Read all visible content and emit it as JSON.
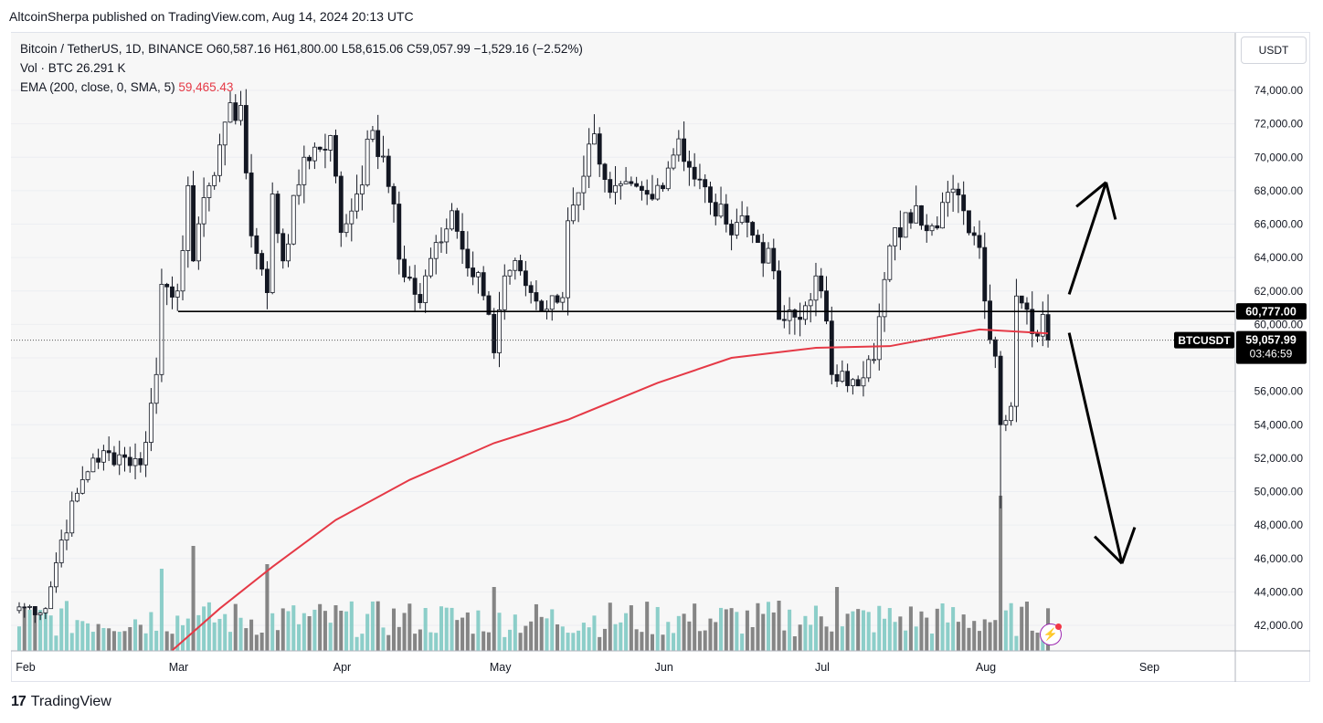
{
  "header": {
    "attribution": "AltcoinSherpa published on TradingView.com, Aug 14, 2024 20:13 UTC"
  },
  "legend": {
    "line1": "Bitcoin / TetherUS, 1D, BINANCE  O60,587.16  H61,800.00  L58,615.06  C59,057.99  −1,529.16 (−2.52%)",
    "line2": "Vol · BTC  26.291 K",
    "line3_prefix": "EMA (200, close, 0, SMA, 5)",
    "line3_value": "59,465.43"
  },
  "price_axis": {
    "unit_button": "USDT"
  },
  "footer": {
    "brand": "TradingView",
    "logo_glyph": "17"
  },
  "colors": {
    "up": "#ffffff",
    "down": "#131722",
    "ema": "#e53946",
    "vol_up": "#7fc9c3",
    "vol_down": "#787878",
    "line": "#000000"
  },
  "icons": {
    "flash": "lightning-bolt-icon"
  },
  "chart_data": {
    "type": "candlestick",
    "symbol": "BTCUSDT",
    "interval": "1D",
    "ylim": [
      40500,
      76500
    ],
    "y_ticks": [
      42000,
      44000,
      46000,
      48000,
      50000,
      52000,
      54000,
      56000,
      58000,
      60000,
      62000,
      64000,
      66000,
      68000,
      70000,
      72000,
      74000
    ],
    "x_ticks": [
      {
        "date": "2024-02-01",
        "label": "Feb"
      },
      {
        "date": "2024-03-01",
        "label": "Mar"
      },
      {
        "date": "2024-04-01",
        "label": "Apr"
      },
      {
        "date": "2024-05-01",
        "label": "May"
      },
      {
        "date": "2024-06-01",
        "label": "Jun"
      },
      {
        "date": "2024-07-01",
        "label": "Jul"
      },
      {
        "date": "2024-08-01",
        "label": "Aug"
      },
      {
        "date": "2024-09-01",
        "label": "Sep"
      }
    ],
    "x_range": [
      "2024-02-01",
      "2024-09-25"
    ],
    "close_anchors": [
      [
        "2024-02-01",
        43100
      ],
      [
        "2024-02-06",
        43000
      ],
      [
        "2024-02-09",
        47100
      ],
      [
        "2024-02-12",
        49900
      ],
      [
        "2024-02-15",
        52000
      ],
      [
        "2024-02-20",
        52200
      ],
      [
        "2024-02-24",
        51600
      ],
      [
        "2024-02-27",
        57000
      ],
      [
        "2024-02-28",
        62400
      ],
      [
        "2024-03-02",
        62000
      ],
      [
        "2024-03-04",
        68300
      ],
      [
        "2024-03-05",
        63800
      ],
      [
        "2024-03-08",
        68300
      ],
      [
        "2024-03-11",
        72100
      ],
      [
        "2024-03-14",
        73100
      ],
      [
        "2024-03-16",
        65300
      ],
      [
        "2024-03-19",
        61900
      ],
      [
        "2024-03-20",
        67800
      ],
      [
        "2024-03-22",
        63800
      ],
      [
        "2024-03-26",
        70000
      ],
      [
        "2024-03-31",
        71300
      ],
      [
        "2024-04-02",
        65500
      ],
      [
        "2024-04-05",
        67800
      ],
      [
        "2024-04-08",
        71600
      ],
      [
        "2024-04-12",
        67200
      ],
      [
        "2024-04-13",
        63900
      ],
      [
        "2024-04-17",
        61300
      ],
      [
        "2024-04-20",
        64900
      ],
      [
        "2024-04-23",
        66800
      ],
      [
        "2024-04-25",
        64500
      ],
      [
        "2024-04-28",
        63100
      ],
      [
        "2024-04-30",
        60600
      ],
      [
        "2024-05-01",
        58300
      ],
      [
        "2024-05-03",
        62900
      ],
      [
        "2024-05-06",
        63200
      ],
      [
        "2024-05-10",
        60800
      ],
      [
        "2024-05-14",
        61600
      ],
      [
        "2024-05-15",
        66200
      ],
      [
        "2024-05-20",
        71400
      ],
      [
        "2024-05-23",
        67900
      ],
      [
        "2024-05-31",
        67500
      ],
      [
        "2024-06-05",
        71100
      ],
      [
        "2024-06-07",
        69400
      ],
      [
        "2024-06-11",
        67300
      ],
      [
        "2024-06-14",
        66000
      ],
      [
        "2024-06-17",
        66500
      ],
      [
        "2024-06-20",
        64900
      ],
      [
        "2024-06-23",
        63200
      ],
      [
        "2024-06-24",
        60300
      ],
      [
        "2024-06-28",
        60300
      ],
      [
        "2024-07-01",
        62900
      ],
      [
        "2024-07-03",
        60200
      ],
      [
        "2024-07-04",
        57000
      ],
      [
        "2024-07-05",
        56600
      ],
      [
        "2024-07-08",
        56700
      ],
      [
        "2024-07-12",
        57900
      ],
      [
        "2024-07-15",
        64700
      ],
      [
        "2024-07-20",
        67100
      ],
      [
        "2024-07-23",
        65900
      ],
      [
        "2024-07-26",
        67900
      ],
      [
        "2024-07-29",
        66800
      ],
      [
        "2024-08-01",
        64600
      ],
      [
        "2024-08-02",
        61400
      ],
      [
        "2024-08-04",
        58100
      ],
      [
        "2024-08-05",
        54000
      ],
      [
        "2024-08-07",
        55100
      ],
      [
        "2024-08-08",
        61700
      ],
      [
        "2024-08-10",
        60900
      ],
      [
        "2024-08-12",
        59300
      ],
      [
        "2024-08-13",
        60600
      ],
      [
        "2024-08-14",
        59058
      ]
    ],
    "ema200": {
      "name": "EMA (200, close, 0, SMA, 5)",
      "points": [
        [
          "2024-03-01",
          40500
        ],
        [
          "2024-03-10",
          43000
        ],
        [
          "2024-03-20",
          45500
        ],
        [
          "2024-04-01",
          48300
        ],
        [
          "2024-04-15",
          50700
        ],
        [
          "2024-05-01",
          52900
        ],
        [
          "2024-05-15",
          54300
        ],
        [
          "2024-06-01",
          56500
        ],
        [
          "2024-06-15",
          58000
        ],
        [
          "2024-07-01",
          58600
        ],
        [
          "2024-07-15",
          58700
        ],
        [
          "2024-08-01",
          59700
        ],
        [
          "2024-08-14",
          59465
        ]
      ]
    },
    "horizontal_line": {
      "value": 60777,
      "label": "60,777.00"
    },
    "last_price": {
      "symbol": "BTCUSDT",
      "value": 59057.99,
      "label": "59,057.99",
      "countdown": "03:46:59"
    },
    "volume": {
      "unit": "K BTC",
      "max": 47,
      "notes": "relative bar heights"
    },
    "annotations": [
      {
        "type": "arrow",
        "direction": "up",
        "from": [
          "2024-08-18",
          61800
        ],
        "to": [
          "2024-08-25",
          68500
        ]
      },
      {
        "type": "arrow",
        "direction": "down",
        "from": [
          "2024-08-18",
          59500
        ],
        "to": [
          "2024-08-28",
          45700
        ]
      }
    ]
  }
}
